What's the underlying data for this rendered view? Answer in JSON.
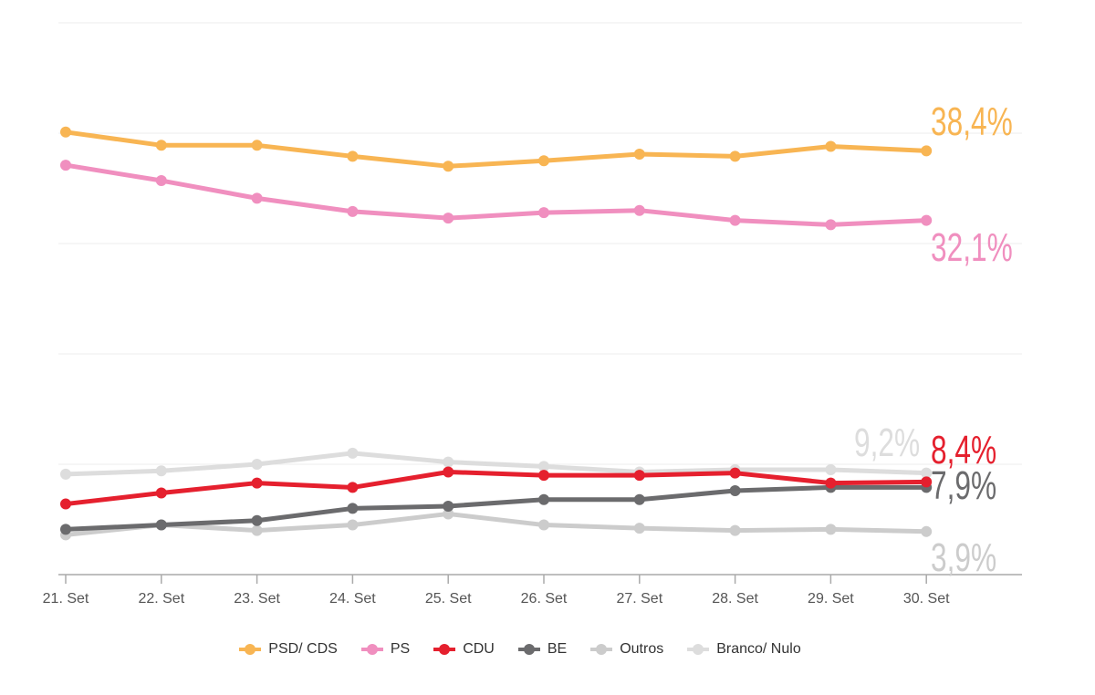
{
  "chart_data": {
    "type": "line",
    "title": "",
    "xlabel": "",
    "ylabel": "",
    "categories": [
      "21. Set",
      "22. Set",
      "23. Set",
      "24. Set",
      "25. Set",
      "26. Set",
      "27. Set",
      "28. Set",
      "29. Set",
      "30. Set"
    ],
    "ylim": [
      0,
      50
    ],
    "gridlines": [
      10,
      20,
      30,
      40,
      50
    ],
    "grid": true,
    "legend_position": "bottom",
    "series": [
      {
        "name": "PSD/ CDS",
        "color": "#f8b553",
        "values": [
          40.1,
          38.9,
          38.9,
          37.9,
          37.0,
          37.5,
          38.1,
          37.9,
          38.8,
          38.4
        ],
        "end_label": "38,4%"
      },
      {
        "name": "PS",
        "color": "#f08fbf",
        "values": [
          37.1,
          35.7,
          34.1,
          32.9,
          32.3,
          32.8,
          33.0,
          32.1,
          31.7,
          32.1
        ],
        "end_label": "32,1%"
      },
      {
        "name": "CDU",
        "color": "#e5202e",
        "values": [
          6.4,
          7.4,
          8.3,
          7.9,
          9.3,
          9.0,
          9.0,
          9.2,
          8.3,
          8.4
        ],
        "end_label": "8,4%"
      },
      {
        "name": "BE",
        "color": "#6b6b6d",
        "values": [
          4.1,
          4.5,
          4.9,
          6.0,
          6.2,
          6.8,
          6.8,
          7.6,
          7.9,
          7.9
        ],
        "end_label": "7,9%"
      },
      {
        "name": "Outros",
        "color": "#cccccc",
        "values": [
          3.6,
          4.5,
          4.0,
          4.5,
          5.5,
          4.5,
          4.2,
          4.0,
          4.1,
          3.9
        ],
        "end_label": "3,9%"
      },
      {
        "name": "Branco/ Nulo",
        "color": "#dddddd",
        "values": [
          9.1,
          9.4,
          10.0,
          11.0,
          10.2,
          9.8,
          9.3,
          9.5,
          9.5,
          9.2
        ],
        "end_label": "9,2%"
      }
    ]
  }
}
